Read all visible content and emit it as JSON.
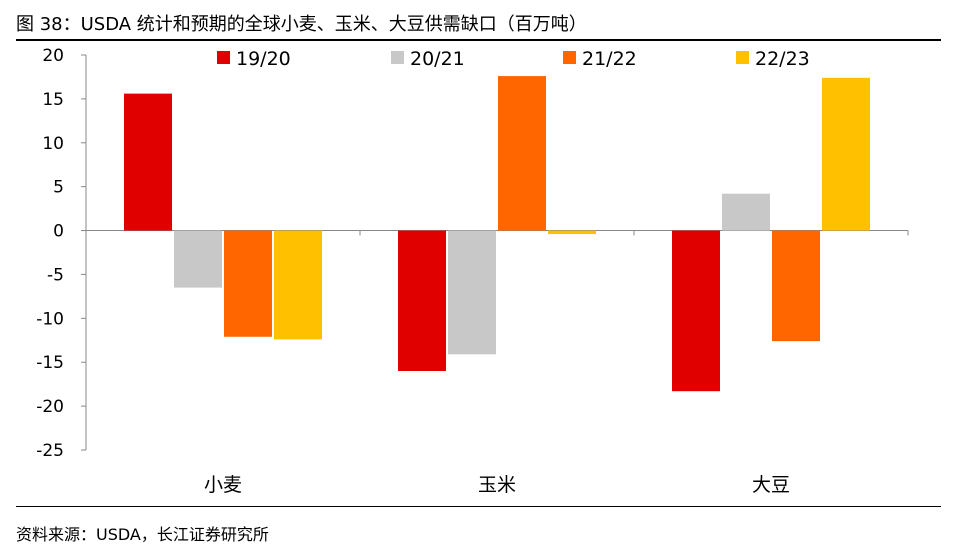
{
  "figure": {
    "title": "图 38：USDA 统计和预期的全球小麦、玉米、大豆供需缺口（百万吨）",
    "source": "资料来源：USDA，长江证券研究所"
  },
  "chart_data": {
    "type": "bar",
    "title": "USDA 统计和预期的全球小麦、玉米、大豆供需缺口（百万吨）",
    "xlabel": "",
    "ylabel": "",
    "ylim": [
      -25,
      20
    ],
    "yticks": [
      20,
      15,
      10,
      5,
      0,
      -5,
      -10,
      -15,
      -20,
      -25
    ],
    "ytick_labels": [
      "20",
      "15",
      "10",
      "5",
      "0",
      "-5",
      "-10",
      "-15",
      "-20",
      "-25"
    ],
    "grid": false,
    "legend_position": "top",
    "categories": [
      "小麦",
      "玉米",
      "大豆"
    ],
    "series": [
      {
        "name": "19/20",
        "color": "#e00000",
        "values": [
          15.6,
          -16.0,
          -18.3
        ]
      },
      {
        "name": "20/21",
        "color": "#c8c8c8",
        "values": [
          -6.5,
          -14.1,
          4.2
        ]
      },
      {
        "name": "21/22",
        "color": "#ff6600",
        "values": [
          -12.1,
          17.6,
          -12.6
        ]
      },
      {
        "name": "22/23",
        "color": "#ffc000",
        "values": [
          -12.4,
          -0.4,
          17.4
        ]
      }
    ]
  }
}
